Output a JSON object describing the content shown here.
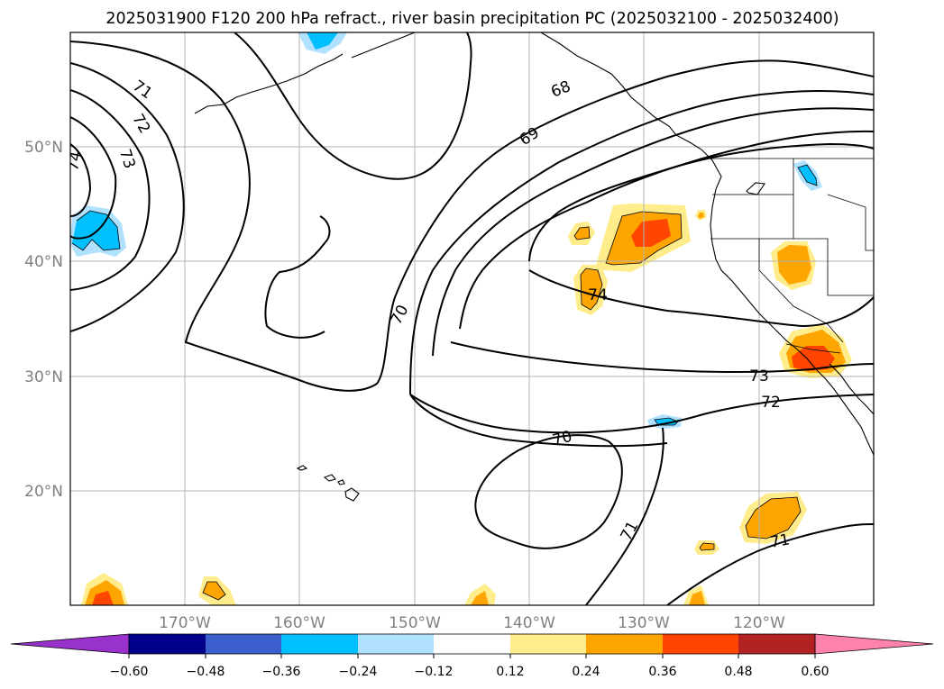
{
  "title": "2025031900 F120 200 hPa refract., river basin precipitation PC (2025032100 - 2025032400)",
  "lat_labels": [
    "50°N",
    "40°N",
    "30°N",
    "20°N"
  ],
  "lon_labels": [
    "170°W",
    "160°W",
    "150°W",
    "140°W",
    "130°W",
    "120°W"
  ],
  "contour_labels": [
    "71",
    "72",
    "73",
    "74",
    "68",
    "69",
    "70",
    "74",
    "73",
    "72",
    "70",
    "71",
    "71"
  ],
  "colorbar": {
    "colors": [
      "#9932cc",
      "#00008b",
      "#3a5fcd",
      "#00bfff",
      "#b0e2ff",
      "#ffffff",
      "#ffec8b",
      "#ffa500",
      "#ff4500",
      "#b22222",
      "#ff82ab"
    ],
    "tick_labels": [
      "−0.60",
      "−0.48",
      "−0.36",
      "−0.24",
      "−0.12",
      "0.12",
      "0.24",
      "0.36",
      "0.48",
      "0.60"
    ]
  }
}
